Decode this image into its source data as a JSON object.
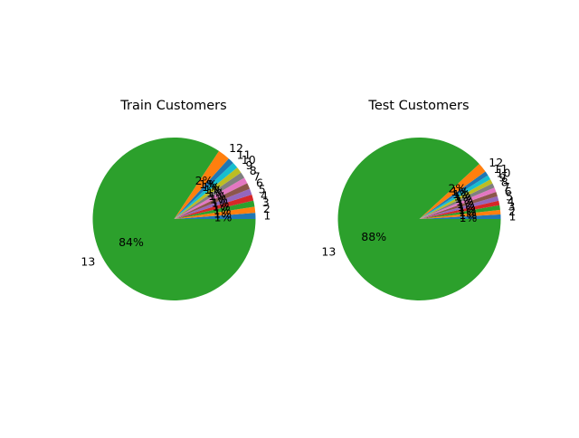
{
  "chart_data": [
    {
      "type": "pie",
      "title": "Train Customers",
      "categories": [
        "1",
        "2",
        "3",
        "4",
        "5",
        "6",
        "7",
        "8",
        "9",
        "10",
        "11",
        "12",
        "13"
      ],
      "values": [
        1.2,
        1.2,
        1.2,
        1.2,
        1.2,
        1.2,
        1.2,
        1.2,
        1.2,
        1.2,
        1.2,
        2.4,
        83.6
      ],
      "percent_labels": [
        "1%",
        "1%",
        "1%",
        "1%",
        "1%",
        "1%",
        "1%",
        "1%",
        "1%",
        "1%",
        "1%",
        "2%",
        "84%"
      ],
      "start_angle": 0,
      "direction": "counterclockwise",
      "colors": [
        "#1f77b4",
        "#ff7f0e",
        "#2ca02c",
        "#d62728",
        "#9467bd",
        "#8c564b",
        "#e377c2",
        "#7f7f7f",
        "#bcbd22",
        "#17becf",
        "#1f77b4",
        "#ff7f0e",
        "#2ca02c"
      ]
    },
    {
      "type": "pie",
      "title": "Test Customers",
      "categories": [
        "1",
        "2",
        "3",
        "4",
        "5",
        "6",
        "7",
        "8",
        "9",
        "10",
        "11",
        "12",
        "13"
      ],
      "values": [
        0.9,
        0.9,
        0.9,
        0.9,
        0.9,
        0.9,
        0.9,
        0.9,
        0.9,
        0.9,
        0.9,
        1.9,
        88.0
      ],
      "percent_labels": [
        "1%",
        "1%",
        "1%",
        "1%",
        "1%",
        "1%",
        "1%",
        "1%",
        "1%",
        "1%",
        "1%",
        "2%",
        "88%"
      ],
      "start_angle": 0,
      "direction": "counterclockwise",
      "colors": [
        "#1f77b4",
        "#ff7f0e",
        "#2ca02c",
        "#d62728",
        "#9467bd",
        "#8c564b",
        "#e377c2",
        "#7f7f7f",
        "#bcbd22",
        "#17becf",
        "#1f77b4",
        "#ff7f0e",
        "#2ca02c"
      ]
    }
  ]
}
